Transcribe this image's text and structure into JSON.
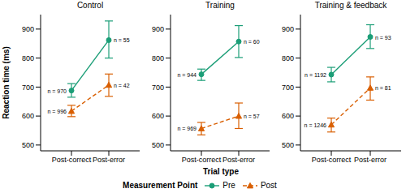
{
  "chart_data": {
    "type": "line",
    "y_label": "Reaction time (ms)",
    "x_label": "Trial type",
    "legend_title": "Measurement Point",
    "categories": [
      "Post-correct",
      "Post-error"
    ],
    "ylim": [
      480,
      950
    ],
    "yticks": [
      500,
      600,
      700,
      800,
      900
    ],
    "grid": false,
    "panels": [
      {
        "title": "Control",
        "series": [
          {
            "name": "Pre",
            "color": "#1b9e77",
            "marker": "circle",
            "line_style": "solid",
            "values": [
              688,
              862
            ],
            "ci_low": [
              665,
              800
            ],
            "ci_high": [
              712,
              928
            ],
            "annotations": [
              "n = 970",
              "n = 55"
            ]
          },
          {
            "name": "Post",
            "color": "#d95f02",
            "marker": "triangle",
            "line_style": "dashed",
            "values": [
              617,
              707
            ],
            "ci_low": [
              598,
              668
            ],
            "ci_high": [
              637,
              745
            ],
            "annotations": [
              "n = 996",
              "n = 42"
            ]
          }
        ]
      },
      {
        "title": "Training",
        "series": [
          {
            "name": "Pre",
            "color": "#1b9e77",
            "marker": "circle",
            "line_style": "solid",
            "values": [
              744,
              857
            ],
            "ci_low": [
              723,
              802
            ],
            "ci_high": [
              762,
              912
            ],
            "annotations": [
              "n = 944",
              "n = 60"
            ]
          },
          {
            "name": "Post",
            "color": "#d95f02",
            "marker": "triangle",
            "line_style": "dashed",
            "values": [
              557,
              600
            ],
            "ci_low": [
              535,
              557
            ],
            "ci_high": [
              578,
              645
            ],
            "annotations": [
              "n = 969",
              "n = 57"
            ]
          }
        ]
      },
      {
        "title": "Training & feedback",
        "series": [
          {
            "name": "Pre",
            "color": "#1b9e77",
            "marker": "circle",
            "line_style": "solid",
            "values": [
              743,
              873
            ],
            "ci_low": [
              718,
              833
            ],
            "ci_high": [
              768,
              915
            ],
            "annotations": [
              "n = 1192",
              "n = 93"
            ]
          },
          {
            "name": "Post",
            "color": "#d95f02",
            "marker": "triangle",
            "line_style": "dashed",
            "values": [
              570,
              697
            ],
            "ci_low": [
              545,
              655
            ],
            "ci_high": [
              593,
              735
            ],
            "annotations": [
              "n = 1246",
              "n = 81"
            ]
          }
        ]
      }
    ]
  }
}
